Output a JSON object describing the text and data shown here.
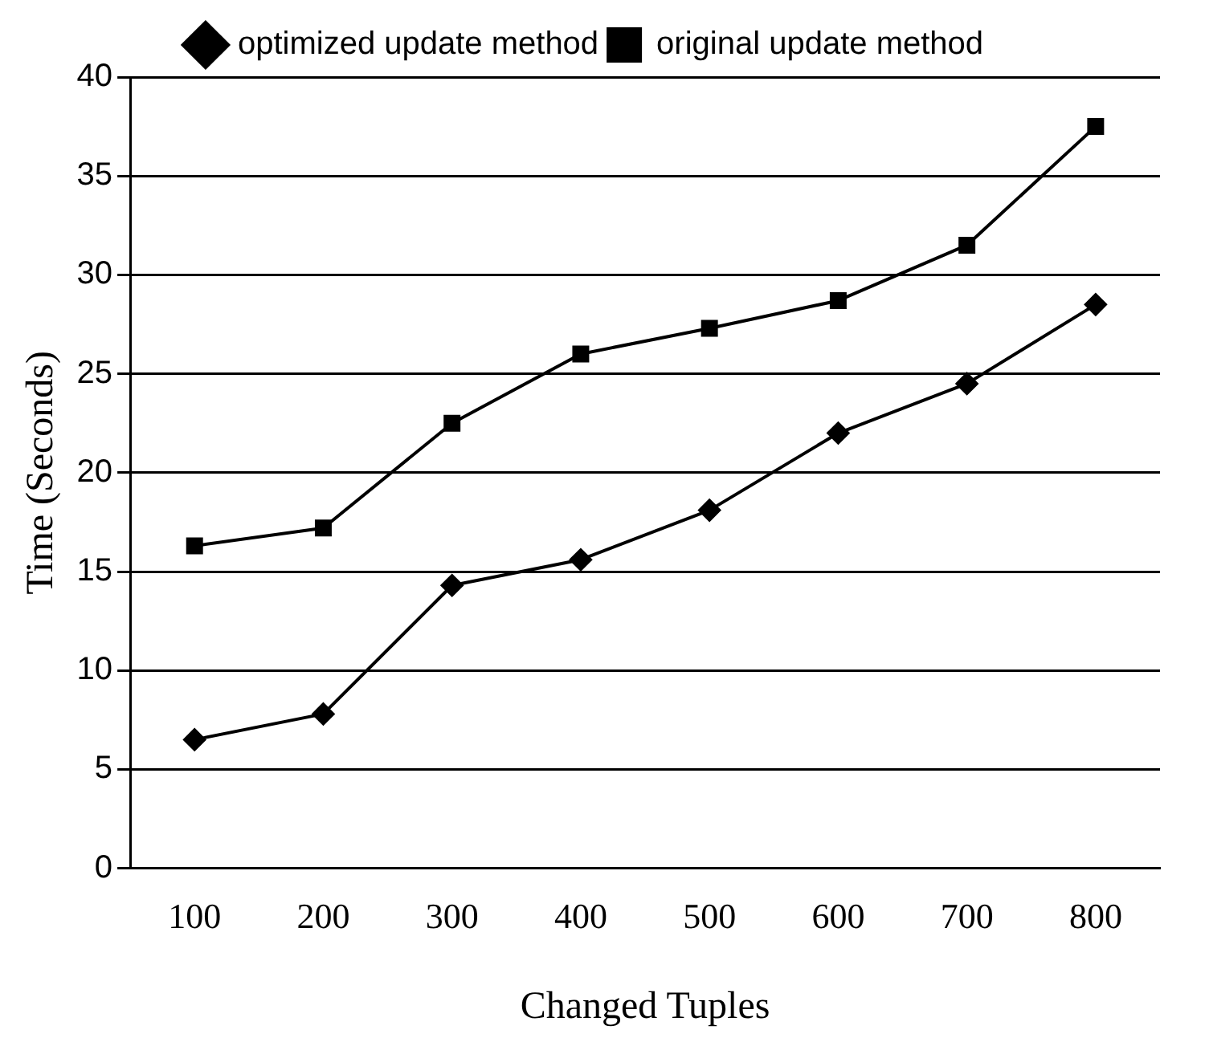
{
  "chart_data": {
    "type": "line",
    "xlabel": "Changed Tuples",
    "ylabel": "Time (Seconds)",
    "categories": [
      "100",
      "200",
      "300",
      "400",
      "500",
      "600",
      "700",
      "800"
    ],
    "series": [
      {
        "name": "optimized update method",
        "color": "#000000",
        "marker": "diamond",
        "values": [
          6.5,
          7.8,
          14.3,
          15.6,
          18.1,
          22.0,
          24.5,
          28.5
        ]
      },
      {
        "name": "original update method",
        "color": "#000000",
        "marker": "square",
        "values": [
          16.3,
          17.2,
          22.5,
          26.0,
          27.3,
          28.7,
          31.5,
          37.5
        ]
      }
    ],
    "ylim": [
      0,
      40
    ],
    "yticks": [
      0,
      5,
      10,
      15,
      20,
      25,
      30,
      35,
      40
    ],
    "grid": "y",
    "legend": "top",
    "line_style": "solid"
  }
}
